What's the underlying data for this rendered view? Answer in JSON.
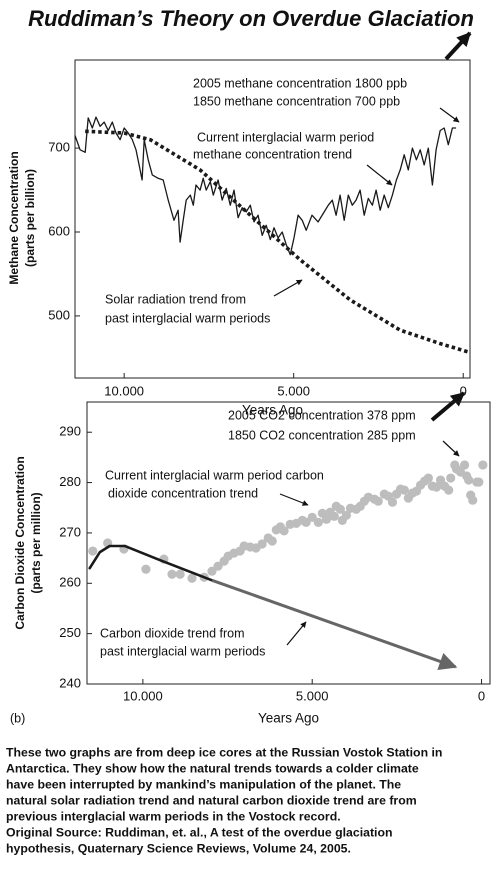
{
  "title": "Ruddiman’s Theory on Overdue Glaciation",
  "chart_data": [
    {
      "type": "line",
      "xlabel": "Years Ago",
      "ylabel": [
        "Methane Concentration",
        "(parts per billion)"
      ],
      "xlim": [
        11450,
        -200
      ],
      "ylim": [
        426,
        805
      ],
      "xticks": [
        {
          "value": 10000,
          "label": "10.000"
        },
        {
          "value": 5000,
          "label": "5.000"
        },
        0
      ],
      "yticks": [
        500,
        600,
        700
      ],
      "annotations": [
        "2005 methane concentration 1800 ppb",
        "1850 methane concentration 700 ppb",
        "Current interglacial warm period",
        "methane concentration trend",
        "Solar radiation trend from",
        "past interglacial warm periods"
      ],
      "series": [
        {
          "style": "solid",
          "color": "#1a1a1a",
          "x": [
            11450,
            11300,
            11150,
            11060,
            10940,
            10830,
            10710,
            10590,
            10470,
            10350,
            10240,
            10120,
            10000,
            9880,
            9760,
            9650,
            9530,
            9470,
            9410,
            9290,
            9170,
            9000,
            8850,
            8700,
            8530,
            8410,
            8350,
            8260,
            8170,
            8050,
            7960,
            7880,
            7760,
            7670,
            7580,
            7460,
            7370,
            7230,
            7110,
            6990,
            6870,
            6760,
            6640,
            6520,
            6400,
            6280,
            6170,
            6050,
            5930,
            5810,
            5690,
            5580,
            5460,
            5340,
            5220,
            5100,
            4990,
            4870,
            4750,
            4630,
            4460,
            4280,
            4100,
            3980,
            3860,
            3750,
            3630,
            3510,
            3390,
            3270,
            3160,
            3040,
            2920,
            2800,
            2680,
            2570,
            2450,
            2330,
            2210,
            2090,
            1970,
            1860,
            1740,
            1620,
            1500,
            1380,
            1270,
            1150,
            1030,
            910,
            800,
            680,
            560,
            440,
            320,
            210
          ],
          "values": [
            715,
            698,
            695,
            736,
            724,
            737,
            726,
            731,
            721,
            731,
            718,
            710,
            724,
            718,
            710,
            698,
            674,
            662,
            710,
            686,
            668,
            664,
            662,
            638,
            614,
            626,
            588,
            614,
            638,
            644,
            632,
            656,
            650,
            664,
            650,
            660,
            644,
            662,
            638,
            652,
            632,
            650,
            617,
            629,
            624,
            632,
            612,
            620,
            596,
            608,
            591,
            605,
            593,
            600,
            585,
            573,
            593,
            620,
            614,
            602,
            620,
            612,
            624,
            632,
            638,
            620,
            644,
            614,
            644,
            632,
            638,
            650,
            620,
            640,
            632,
            650,
            626,
            644,
            629,
            644,
            662,
            674,
            692,
            674,
            700,
            686,
            698,
            680,
            700,
            656,
            698,
            721,
            724,
            704,
            724,
            724
          ]
        },
        {
          "style": "dotted",
          "color": "#1a1a1a",
          "x": [
            11150,
            10000,
            9230,
            7760,
            6280,
            4810,
            3330,
            1860,
            680,
            -150
          ],
          "values": [
            720,
            718,
            710,
            674,
            620,
            567,
            519,
            483,
            467,
            457
          ]
        }
      ]
    },
    {
      "type": "scatter",
      "xlabel": "Years Ago",
      "ylabel": [
        "Carbon Dioxide Concentration",
        "(parts per million)"
      ],
      "panel_label": "(b)",
      "xlim": [
        11650,
        -250
      ],
      "ylim": [
        240,
        296
      ],
      "xticks": [
        {
          "value": 10000,
          "label": "10.000"
        },
        {
          "value": 5000,
          "label": "5.000"
        },
        0
      ],
      "yticks": [
        240,
        250,
        260,
        270,
        280,
        290
      ],
      "annotations": [
        "2005 CO2 concentration 378 ppm",
        "1850 CO2 concentration 285 ppm",
        "Current interglacial warm period carbon",
        "dioxide concentration trend",
        "Carbon dioxide trend from",
        "past interglacial warm periods"
      ],
      "series": [
        {
          "style": "points",
          "color": "#bdbdbd",
          "x": [
            11480,
            11040,
            10560,
            9910,
            9380,
            9140,
            8900,
            8550,
            8190,
            7960,
            7780,
            7600,
            7480,
            7310,
            7130,
            7010,
            6830,
            6660,
            6480,
            6300,
            6180,
            6060,
            5940,
            5830,
            5650,
            5470,
            5290,
            5180,
            5000,
            4820,
            4700,
            4580,
            4470,
            4350,
            4290,
            4170,
            4110,
            3990,
            3870,
            3700,
            3580,
            3460,
            3340,
            3160,
            3050,
            2870,
            2750,
            2630,
            2510,
            2390,
            2280,
            2160,
            2040,
            1920,
            1800,
            1680,
            1570,
            1450,
            1330,
            1210,
            1090,
            970,
            910,
            790,
            740,
            620,
            500,
            440,
            380,
            320,
            260,
            140,
            80,
            -40
          ],
          "values": [
            266.4,
            268.0,
            266.8,
            262.8,
            264.8,
            261.8,
            261.8,
            261.0,
            261.2,
            262.4,
            263.4,
            264.4,
            265.4,
            266.0,
            266.4,
            267.4,
            267.2,
            267.0,
            267.8,
            269.0,
            268.4,
            270.6,
            271.2,
            270.4,
            271.7,
            271.9,
            272.5,
            272.1,
            273.1,
            272.1,
            273.9,
            272.7,
            274.1,
            273.3,
            275.3,
            274.7,
            272.5,
            273.5,
            274.9,
            274.7,
            275.3,
            276.3,
            277.1,
            276.7,
            276.3,
            277.7,
            277.3,
            276.1,
            277.7,
            278.7,
            278.5,
            276.9,
            277.9,
            278.3,
            279.5,
            280.3,
            280.9,
            279.3,
            279.1,
            280.5,
            279.3,
            278.5,
            280.9,
            283.5,
            282.7,
            282.1,
            283.5,
            281.3,
            280.5,
            277.5,
            276.5,
            280.1,
            280.1,
            283.5
          ]
        },
        {
          "style": "solid-thick",
          "color": "#1a1a1a",
          "x": [
            11570,
            11270,
            10980,
            10530,
            9500,
            7960
          ],
          "values": [
            263,
            266.2,
            267.4,
            267.4,
            264.6,
            260.6
          ]
        },
        {
          "style": "arrow",
          "color": "#666666",
          "x": [
            7960,
            765
          ],
          "values": [
            260.6,
            243.4
          ]
        }
      ]
    }
  ],
  "caption": [
    "These two graphs are from deep ice cores at the Russian Vostok Station in",
    "Antarctica.  They show how the natural trends towards a colder climate",
    "have been interrupted by mankind’s manipulation of the planet.  The",
    "natural solar radiation trend and natural carbon dioxide trend are from",
    "previous interglacial warm periods  in the Vostock record.",
    "Original Source:  Ruddiman, et. al., A test of the overdue glaciation",
    "hypothesis, Quaternary Science Reviews, Volume 24, 2005."
  ]
}
